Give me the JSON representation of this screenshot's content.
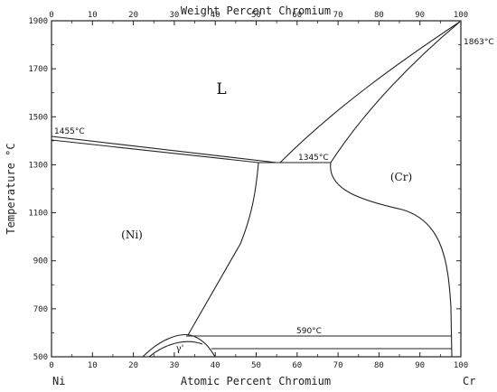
{
  "chart_data": {
    "type": "line",
    "title": "",
    "xlabel": "Atomic Percent Chromium",
    "x2label": "Weight Percent Chromium",
    "ylabel": "Temperature °C",
    "xlim": [
      0,
      100
    ],
    "ylim": [
      500,
      1900
    ],
    "x_ticks": [
      0,
      10,
      20,
      30,
      40,
      50,
      60,
      70,
      80,
      90,
      100
    ],
    "x2_ticks": [
      0,
      10,
      20,
      30,
      40,
      50,
      60,
      70,
      80,
      90,
      100
    ],
    "y_ticks": [
      500,
      700,
      900,
      1100,
      1300,
      1500,
      1700,
      1900
    ],
    "left_component": "Ni",
    "right_component": "Cr",
    "phase_labels": {
      "liquid": "L",
      "ni_solid_solution": "(Ni)",
      "cr_solid_solution": "(Cr)",
      "gamma_prime": "γ'"
    },
    "annotations": {
      "ni_melting": "1455°C",
      "cr_melting": "1863°C",
      "eutectic": "1345°C",
      "lower_horizontal": "590°C"
    },
    "series": [
      {
        "x": [
          0,
          48,
          67,
          100
        ],
        "y": [
          1455,
          1345,
          1345,
          1863
        ]
      },
      {
        "x": [
          0,
          56,
          67,
          100
        ],
        "y": [
          1455,
          1345,
          1345,
          1863
        ]
      },
      {
        "x": [
          48,
          33.5
        ],
        "y": [
          1345,
          590
        ]
      },
      {
        "x": [
          67,
          98.5,
          98.5
        ],
        "y": [
          1345,
          1020,
          590
        ]
      },
      {
        "x": [
          33.5,
          98.5
        ],
        "y": [
          590,
          590
        ]
      },
      {
        "x": [
          22,
          32,
          40
        ],
        "y": [
          500,
          580,
          500
        ]
      }
    ]
  }
}
